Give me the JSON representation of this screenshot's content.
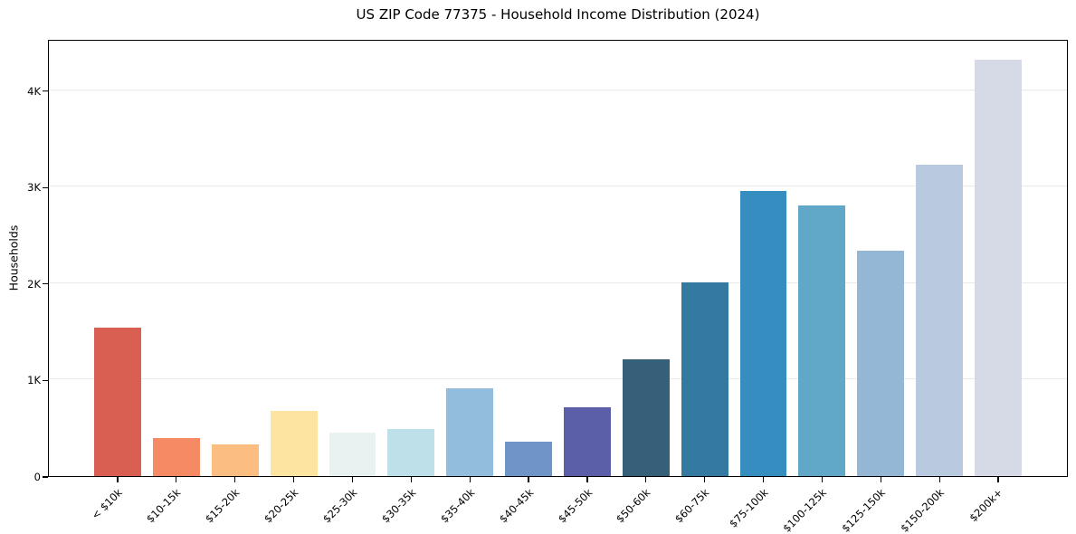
{
  "chart_data": {
    "type": "bar",
    "title": "US ZIP Code 77375 - Household Income Distribution (2024)",
    "xlabel": "",
    "ylabel": "Households",
    "categories": [
      "< $10k",
      "$10-15k",
      "$15-20k",
      "$20-25k",
      "$25-30k",
      "$30-35k",
      "$35-40k",
      "$40-45k",
      "$45-50k",
      "$50-60k",
      "$60-75k",
      "$75-100k",
      "$100-125k",
      "$125-150k",
      "$150-200k",
      "$200k+"
    ],
    "values": [
      1540,
      390,
      330,
      675,
      455,
      490,
      910,
      360,
      715,
      1210,
      2010,
      2950,
      2800,
      2340,
      3230,
      4310
    ],
    "bar_colors": [
      "#d95f52",
      "#f58a64",
      "#fcbd80",
      "#fde5a1",
      "#e8f2f1",
      "#bee1e9",
      "#92bddc",
      "#6e94c8",
      "#5a5fa8",
      "#36607a",
      "#34799f",
      "#368dbf",
      "#60a7c8",
      "#93b7d4",
      "#b9c9e0",
      "#d6d9e6"
    ],
    "ylim": [
      0,
      4530
    ],
    "yticks": [
      0,
      1000,
      2000,
      3000,
      4000
    ],
    "ytick_labels": [
      "0",
      "1K",
      "2K",
      "3K",
      "4K"
    ],
    "grid": "horizontal",
    "grid_color": "#e9e9e9",
    "axis_color": "#000000",
    "background_color": "#ffffff",
    "legend": null
  }
}
